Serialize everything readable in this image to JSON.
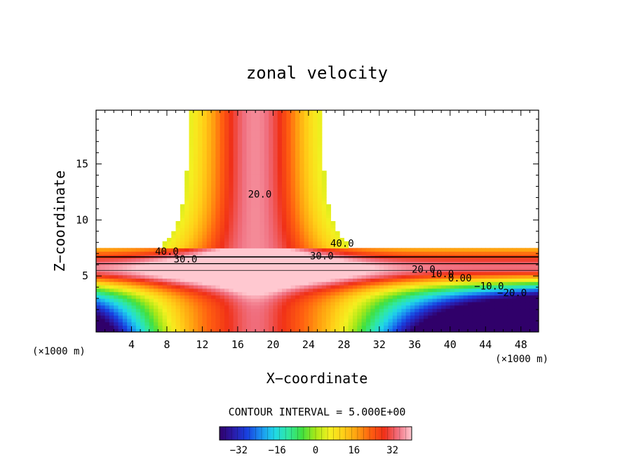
{
  "chart_data": {
    "type": "heatmap",
    "title": "zonal velocity",
    "xlabel": "X−coordinate",
    "ylabel": "Z−coordinate",
    "x_unit_left": "(×1000 m)",
    "x_unit_right": "(×1000 m)",
    "xlim": [
      0,
      50
    ],
    "ylim": [
      0,
      19.8
    ],
    "x_ticks": [
      4,
      8,
      12,
      16,
      20,
      24,
      28,
      32,
      36,
      40,
      44,
      48
    ],
    "y_ticks": [
      5,
      10,
      15
    ],
    "contour_interval_text": "CONTOUR INTERVAL = 5.000E+00",
    "colorbar": {
      "min": -40,
      "max": 40,
      "ticks": [
        -32,
        -16,
        0,
        16,
        32
      ],
      "tick_labels": [
        "−32",
        "−16",
        "0",
        "16",
        "32"
      ],
      "colormap": [
        "#30006a",
        "#2a1aa8",
        "#1840e0",
        "#1a90f0",
        "#20d8e8",
        "#30e8a0",
        "#40e040",
        "#a8e818",
        "#f4f020",
        "#ffd018",
        "#ffa010",
        "#ff6010",
        "#f03018",
        "#f07080",
        "#ffc8d0"
      ]
    },
    "contour_labels": [
      {
        "text": "40.0",
        "x": 8.0,
        "z": 6.9
      },
      {
        "text": "30.0",
        "x": 10.1,
        "z": 6.2
      },
      {
        "text": "20.0",
        "x": 18.5,
        "z": 12.0
      },
      {
        "text": "30.0",
        "x": 25.5,
        "z": 6.5
      },
      {
        "text": "40.0",
        "x": 27.8,
        "z": 7.6
      },
      {
        "text": "20.0",
        "x": 37.0,
        "z": 5.3
      },
      {
        "text": "10.0",
        "x": 39.1,
        "z": 4.9
      },
      {
        "text": "0.00",
        "x": 41.1,
        "z": 4.5
      },
      {
        "text": "−10.0",
        "x": 44.4,
        "z": 3.8
      },
      {
        "text": "−20.0",
        "x": 47.0,
        "z": 3.2
      }
    ]
  }
}
